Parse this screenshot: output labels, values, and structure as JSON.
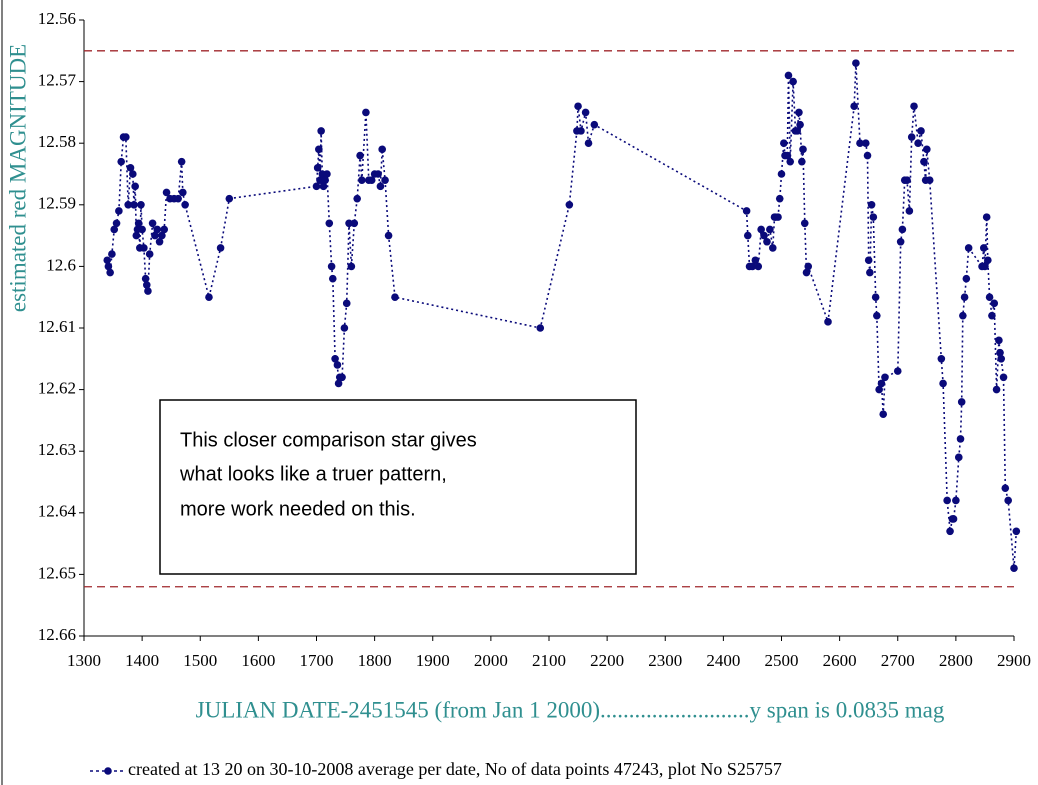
{
  "chart_data": {
    "type": "line",
    "xlabel": "JULIAN DATE-2451545 (from Jan 1 2000)..........................y span is 0.0835 mag",
    "ylabel": "estimated red MAGNITUDE",
    "annotation": [
      "This closer comparison star gives",
      "what looks like a truer pattern,",
      "more work needed on this."
    ],
    "xlim": [
      1300,
      2900
    ],
    "xticks": [
      1300,
      1400,
      1500,
      1600,
      1700,
      1800,
      1900,
      2000,
      2100,
      2200,
      2300,
      2400,
      2500,
      2600,
      2700,
      2800,
      2900
    ],
    "ylim": [
      12.56,
      12.66
    ],
    "y_inverted": true,
    "yticks": [
      12.56,
      12.57,
      12.58,
      12.59,
      12.6,
      12.61,
      12.62,
      12.63,
      12.64,
      12.65,
      12.66
    ],
    "grid": false,
    "reference_lines": {
      "values": [
        12.565,
        12.652
      ],
      "color": "#a0282d"
    },
    "x": [
      1340,
      1342,
      1345,
      1348,
      1352,
      1356,
      1360,
      1364,
      1368,
      1372,
      1376,
      1380,
      1384,
      1386,
      1388,
      1390,
      1392,
      1394,
      1396,
      1398,
      1400,
      1403,
      1406,
      1408,
      1410,
      1413,
      1418,
      1422,
      1426,
      1430,
      1434,
      1438,
      1442,
      1448,
      1455,
      1462,
      1468,
      1470,
      1474,
      1515,
      1535,
      1550,
      1700,
      1702,
      1704,
      1706,
      1708,
      1710,
      1712,
      1715,
      1718,
      1722,
      1726,
      1728,
      1732,
      1736,
      1738,
      1740,
      1744,
      1748,
      1752,
      1756,
      1760,
      1765,
      1770,
      1775,
      1778,
      1785,
      1790,
      1795,
      1800,
      1806,
      1810,
      1813,
      1818,
      1824,
      1835,
      2085,
      2135,
      2148,
      2150,
      2155,
      2163,
      2168,
      2178,
      2440,
      2442,
      2445,
      2450,
      2455,
      2460,
      2465,
      2470,
      2475,
      2480,
      2485,
      2488,
      2490,
      2494,
      2497,
      2500,
      2504,
      2506,
      2510,
      2512,
      2515,
      2520,
      2524,
      2527,
      2530,
      2532,
      2535,
      2537,
      2540,
      2543,
      2546,
      2580,
      2625,
      2628,
      2635,
      2645,
      2648,
      2650,
      2652,
      2655,
      2658,
      2662,
      2664,
      2668,
      2672,
      2675,
      2678,
      2700,
      2705,
      2708,
      2712,
      2716,
      2720,
      2724,
      2728,
      2735,
      2740,
      2745,
      2748,
      2750,
      2755,
      2775,
      2778,
      2785,
      2790,
      2794,
      2796,
      2800,
      2805,
      2808,
      2810,
      2812,
      2815,
      2818,
      2822,
      2845,
      2848,
      2850,
      2853,
      2855,
      2858,
      2862,
      2866,
      2870,
      2874,
      2876,
      2878,
      2882,
      2885,
      2890,
      2900,
      2904
    ],
    "series": [
      {
        "name": "created at 13 20 on 30-10-2008 average per date, No of data points 47243,  plot No S25757",
        "color": "#0a0a7a",
        "values": [
          12.599,
          12.6,
          12.601,
          12.598,
          12.594,
          12.593,
          12.591,
          12.583,
          12.579,
          12.579,
          12.59,
          12.584,
          12.585,
          12.59,
          12.587,
          12.595,
          12.594,
          12.593,
          12.597,
          12.59,
          12.594,
          12.597,
          12.602,
          12.603,
          12.604,
          12.598,
          12.593,
          12.595,
          12.594,
          12.596,
          12.595,
          12.594,
          12.588,
          12.589,
          12.589,
          12.589,
          12.583,
          12.588,
          12.59,
          12.605,
          12.597,
          12.589,
          12.587,
          12.584,
          12.581,
          12.586,
          12.578,
          12.585,
          12.587,
          12.586,
          12.585,
          12.593,
          12.6,
          12.602,
          12.615,
          12.616,
          12.619,
          12.618,
          12.618,
          12.61,
          12.606,
          12.593,
          12.6,
          12.593,
          12.589,
          12.582,
          12.586,
          12.575,
          12.586,
          12.586,
          12.585,
          12.585,
          12.587,
          12.581,
          12.586,
          12.595,
          12.605,
          12.61,
          12.59,
          12.578,
          12.574,
          12.578,
          12.575,
          12.58,
          12.577,
          12.591,
          12.595,
          12.6,
          12.6,
          12.599,
          12.6,
          12.594,
          12.595,
          12.596,
          12.594,
          12.597,
          12.592,
          12.592,
          12.592,
          12.589,
          12.585,
          12.58,
          12.582,
          12.582,
          12.569,
          12.583,
          12.57,
          12.578,
          12.578,
          12.575,
          12.577,
          12.583,
          12.581,
          12.593,
          12.601,
          12.6,
          12.609,
          12.574,
          12.567,
          12.58,
          12.58,
          12.582,
          12.599,
          12.601,
          12.59,
          12.592,
          12.605,
          12.608,
          12.62,
          12.619,
          12.624,
          12.618,
          12.617,
          12.596,
          12.594,
          12.586,
          12.586,
          12.591,
          12.579,
          12.574,
          12.58,
          12.578,
          12.583,
          12.586,
          12.581,
          12.586,
          12.615,
          12.619,
          12.638,
          12.643,
          12.641,
          12.641,
          12.638,
          12.631,
          12.628,
          12.622,
          12.608,
          12.605,
          12.602,
          12.597,
          12.6,
          12.597,
          12.6,
          12.592,
          12.599,
          12.605,
          12.608,
          12.606,
          12.62,
          12.612,
          12.614,
          12.615,
          12.618,
          12.636,
          12.638,
          12.649,
          12.643
        ]
      }
    ]
  }
}
